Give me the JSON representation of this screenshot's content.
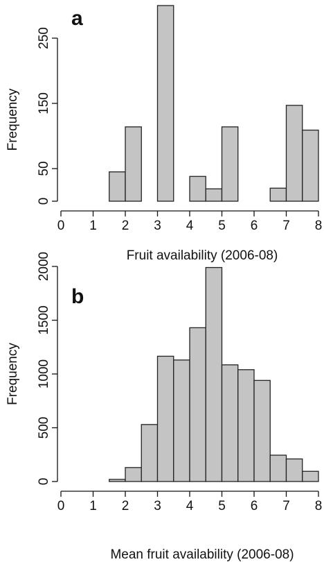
{
  "chart_data": [
    {
      "type": "bar",
      "panel": "a",
      "xlabel": "Fruit availability (2006-08)",
      "ylabel": "Frequency",
      "xlim": [
        0,
        8
      ],
      "ylim": [
        0,
        300
      ],
      "x_ticks": [
        "0",
        "1",
        "2",
        "3",
        "4",
        "5",
        "6",
        "7",
        "8"
      ],
      "y_ticks": [
        "0",
        "50",
        "150",
        "250"
      ],
      "y_tick_values": [
        0,
        50,
        150,
        250
      ],
      "bins": [
        [
          1.5,
          2
        ],
        [
          2,
          2.5
        ],
        [
          2.5,
          3
        ],
        [
          3,
          3.5
        ],
        [
          3.5,
          4
        ],
        [
          4,
          4.5
        ],
        [
          4.5,
          5
        ],
        [
          5,
          5.5
        ],
        [
          5.5,
          6
        ],
        [
          6,
          6.5
        ],
        [
          6.5,
          7
        ],
        [
          7,
          7.5
        ],
        [
          7.5,
          8
        ]
      ],
      "values": [
        45,
        114,
        0,
        300,
        0,
        38,
        19,
        114,
        0,
        0,
        20,
        147,
        109
      ],
      "bar_color": "#c4c4c4",
      "grid": false
    },
    {
      "type": "bar",
      "panel": "b",
      "xlabel": "Mean fruit availability (2006-08)",
      "ylabel": "Frequency",
      "xlim": [
        0,
        8
      ],
      "ylim": [
        0,
        2000
      ],
      "x_ticks": [
        "0",
        "1",
        "2",
        "3",
        "4",
        "5",
        "6",
        "7",
        "8"
      ],
      "y_ticks": [
        "0",
        "500",
        "1000",
        "1500",
        "2000"
      ],
      "y_tick_values": [
        0,
        500,
        1000,
        1500,
        2000
      ],
      "bins": [
        [
          1.5,
          2
        ],
        [
          2,
          2.5
        ],
        [
          2.5,
          3
        ],
        [
          3,
          3.5
        ],
        [
          3.5,
          4
        ],
        [
          4,
          4.5
        ],
        [
          4.5,
          5
        ],
        [
          5,
          5.5
        ],
        [
          5.5,
          6
        ],
        [
          6,
          6.5
        ],
        [
          6.5,
          7
        ],
        [
          7,
          7.5
        ],
        [
          7.5,
          8
        ]
      ],
      "values": [
        20,
        130,
        530,
        1165,
        1130,
        1430,
        1990,
        1085,
        1040,
        940,
        245,
        210,
        95
      ],
      "bar_color": "#c4c4c4",
      "grid": false
    }
  ]
}
